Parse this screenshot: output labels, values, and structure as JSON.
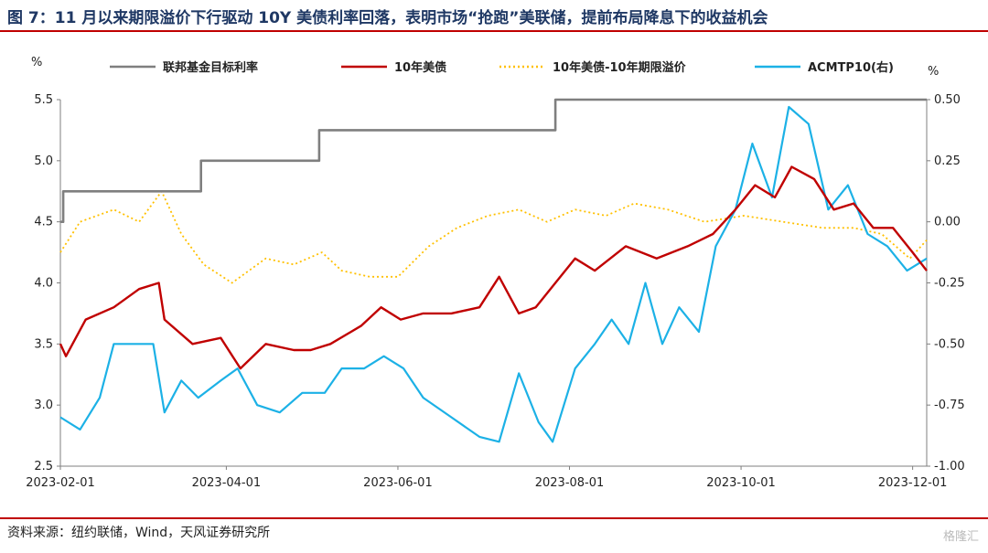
{
  "title": "图 7：11 月以来期限溢价下行驱动 10Y 美债利率回落，表明市场“抢跑”美联储，提前布局降息下的收益机会",
  "source": "资料来源：纽约联储，Wind，天风证券研究所",
  "watermark": "格隆汇",
  "chart_data": {
    "type": "line",
    "y_left_unit": "%",
    "y_right_unit": "%",
    "ylim_left": [
      2.5,
      5.5
    ],
    "ylim_right": [
      -1.0,
      0.5
    ],
    "left_ticks": [
      "5.5",
      "5.0",
      "4.5",
      "4.0",
      "3.5",
      "3.0",
      "2.5"
    ],
    "right_ticks": [
      "0.50",
      "0.25",
      "0.00",
      "-0.25",
      "-0.50",
      "-0.75",
      "-1.00"
    ],
    "x_ticks": [
      "2023-02-01",
      "2023-04-01",
      "2023-06-01",
      "2023-08-01",
      "2023-10-01",
      "2023-12-01"
    ],
    "x_range": [
      "2023-02-01",
      "2023-12-06"
    ],
    "legend": [
      "联邦基金目标利率",
      "10年美债",
      "10年美债-10年期限溢价",
      "ACMTP10(右)"
    ],
    "colors": {
      "fed": "#7f7f7f",
      "ust10": "#c00000",
      "spread": "#ffc000",
      "acm": "#1cb1e6"
    },
    "series": [
      {
        "name": "联邦基金目标利率",
        "axis": "left",
        "style": "step",
        "points": [
          [
            "2023-02-01",
            4.5
          ],
          [
            "2023-02-02",
            4.75
          ],
          [
            "2023-03-23",
            5.0
          ],
          [
            "2023-05-04",
            5.25
          ],
          [
            "2023-07-27",
            5.5
          ],
          [
            "2023-12-06",
            5.5
          ]
        ]
      },
      {
        "name": "10年美债",
        "axis": "left",
        "style": "solid",
        "points": [
          [
            "2023-02-01",
            3.5
          ],
          [
            "2023-02-03",
            3.4
          ],
          [
            "2023-02-10",
            3.7
          ],
          [
            "2023-02-20",
            3.8
          ],
          [
            "2023-03-01",
            3.95
          ],
          [
            "2023-03-08",
            4.0
          ],
          [
            "2023-03-10",
            3.7
          ],
          [
            "2023-03-20",
            3.5
          ],
          [
            "2023-03-30",
            3.55
          ],
          [
            "2023-04-06",
            3.3
          ],
          [
            "2023-04-15",
            3.5
          ],
          [
            "2023-04-25",
            3.45
          ],
          [
            "2023-05-01",
            3.45
          ],
          [
            "2023-05-08",
            3.5
          ],
          [
            "2023-05-19",
            3.65
          ],
          [
            "2023-05-26",
            3.8
          ],
          [
            "2023-06-02",
            3.7
          ],
          [
            "2023-06-10",
            3.75
          ],
          [
            "2023-06-20",
            3.75
          ],
          [
            "2023-06-30",
            3.8
          ],
          [
            "2023-07-07",
            4.05
          ],
          [
            "2023-07-14",
            3.75
          ],
          [
            "2023-07-20",
            3.8
          ],
          [
            "2023-07-27",
            4.0
          ],
          [
            "2023-08-03",
            4.2
          ],
          [
            "2023-08-10",
            4.1
          ],
          [
            "2023-08-21",
            4.3
          ],
          [
            "2023-09-01",
            4.2
          ],
          [
            "2023-09-12",
            4.3
          ],
          [
            "2023-09-21",
            4.4
          ],
          [
            "2023-09-29",
            4.6
          ],
          [
            "2023-10-06",
            4.8
          ],
          [
            "2023-10-13",
            4.7
          ],
          [
            "2023-10-19",
            4.95
          ],
          [
            "2023-10-27",
            4.85
          ],
          [
            "2023-11-03",
            4.6
          ],
          [
            "2023-11-10",
            4.65
          ],
          [
            "2023-11-17",
            4.45
          ],
          [
            "2023-11-24",
            4.45
          ],
          [
            "2023-12-01",
            4.25
          ],
          [
            "2023-12-06",
            4.1
          ]
        ]
      },
      {
        "name": "10年美债-10年期限溢价",
        "axis": "left",
        "style": "dotted",
        "points": [
          [
            "2023-02-01",
            4.25
          ],
          [
            "2023-02-08",
            4.5
          ],
          [
            "2023-02-20",
            4.6
          ],
          [
            "2023-03-01",
            4.5
          ],
          [
            "2023-03-09",
            4.75
          ],
          [
            "2023-03-16",
            4.4
          ],
          [
            "2023-03-24",
            4.15
          ],
          [
            "2023-04-03",
            4.0
          ],
          [
            "2023-04-15",
            4.2
          ],
          [
            "2023-04-25",
            4.15
          ],
          [
            "2023-05-05",
            4.25
          ],
          [
            "2023-05-12",
            4.1
          ],
          [
            "2023-05-22",
            4.05
          ],
          [
            "2023-06-01",
            4.05
          ],
          [
            "2023-06-12",
            4.3
          ],
          [
            "2023-06-22",
            4.45
          ],
          [
            "2023-07-03",
            4.55
          ],
          [
            "2023-07-14",
            4.6
          ],
          [
            "2023-07-24",
            4.5
          ],
          [
            "2023-08-03",
            4.6
          ],
          [
            "2023-08-14",
            4.55
          ],
          [
            "2023-08-24",
            4.65
          ],
          [
            "2023-09-05",
            4.6
          ],
          [
            "2023-09-18",
            4.5
          ],
          [
            "2023-10-02",
            4.55
          ],
          [
            "2023-10-16",
            4.5
          ],
          [
            "2023-10-30",
            4.45
          ],
          [
            "2023-11-10",
            4.45
          ],
          [
            "2023-11-20",
            4.4
          ],
          [
            "2023-11-30",
            4.2
          ],
          [
            "2023-12-06",
            4.35
          ]
        ]
      },
      {
        "name": "ACMTP10(右)",
        "axis": "right",
        "style": "solid",
        "points": [
          [
            "2023-02-01",
            -0.8
          ],
          [
            "2023-02-08",
            -0.85
          ],
          [
            "2023-02-15",
            -0.72
          ],
          [
            "2023-02-20",
            -0.5
          ],
          [
            "2023-02-28",
            -0.5
          ],
          [
            "2023-03-06",
            -0.5
          ],
          [
            "2023-03-10",
            -0.78
          ],
          [
            "2023-03-16",
            -0.65
          ],
          [
            "2023-03-22",
            -0.72
          ],
          [
            "2023-03-30",
            -0.65
          ],
          [
            "2023-04-05",
            -0.6
          ],
          [
            "2023-04-12",
            -0.75
          ],
          [
            "2023-04-20",
            -0.78
          ],
          [
            "2023-04-28",
            -0.7
          ],
          [
            "2023-05-06",
            -0.7
          ],
          [
            "2023-05-12",
            -0.6
          ],
          [
            "2023-05-20",
            -0.6
          ],
          [
            "2023-05-27",
            -0.55
          ],
          [
            "2023-06-03",
            -0.6
          ],
          [
            "2023-06-10",
            -0.72
          ],
          [
            "2023-06-20",
            -0.8
          ],
          [
            "2023-06-30",
            -0.88
          ],
          [
            "2023-07-07",
            -0.9
          ],
          [
            "2023-07-14",
            -0.62
          ],
          [
            "2023-07-21",
            -0.82
          ],
          [
            "2023-07-26",
            -0.9
          ],
          [
            "2023-08-03",
            -0.6
          ],
          [
            "2023-08-10",
            -0.5
          ],
          [
            "2023-08-16",
            -0.4
          ],
          [
            "2023-08-22",
            -0.5
          ],
          [
            "2023-08-28",
            -0.25
          ],
          [
            "2023-09-03",
            -0.5
          ],
          [
            "2023-09-09",
            -0.35
          ],
          [
            "2023-09-16",
            -0.45
          ],
          [
            "2023-09-22",
            -0.1
          ],
          [
            "2023-09-29",
            0.05
          ],
          [
            "2023-10-05",
            0.32
          ],
          [
            "2023-10-12",
            0.1
          ],
          [
            "2023-10-18",
            0.47
          ],
          [
            "2023-10-25",
            0.4
          ],
          [
            "2023-11-01",
            0.05
          ],
          [
            "2023-11-08",
            0.15
          ],
          [
            "2023-11-15",
            -0.05
          ],
          [
            "2023-11-22",
            -0.1
          ],
          [
            "2023-11-29",
            -0.2
          ],
          [
            "2023-12-06",
            -0.15
          ]
        ]
      }
    ]
  }
}
